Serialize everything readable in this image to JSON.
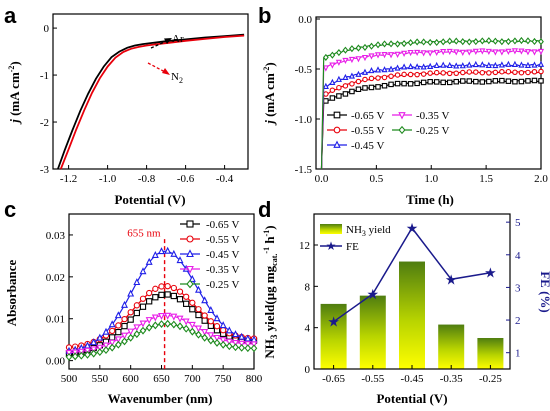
{
  "panels": [
    {
      "id": "a",
      "label": "a",
      "chart_data": {
        "type": "line",
        "xlabel": "Potential (V)",
        "ylabel": "j (mA cm-2)",
        "xlim": [
          -1.28,
          -0.28
        ],
        "ylim": [
          -3,
          0.3
        ],
        "xticks": [
          "-1.2",
          "-1.0",
          "-0.8",
          "-0.6",
          "-0.4"
        ],
        "yticks": [
          "0",
          "-1",
          "-2",
          "-3"
        ],
        "series": [
          {
            "name": "Ar",
            "color": "#000000",
            "x": [
              -1.255,
              -1.22,
              -1.18,
              -1.14,
              -1.1,
              -1.06,
              -1.02,
              -0.98,
              -0.94,
              -0.9,
              -0.86,
              -0.82,
              -0.78,
              -0.74,
              -0.7,
              -0.6,
              -0.5,
              -0.4,
              -0.3
            ],
            "y": [
              -3.0,
              -2.6,
              -2.17,
              -1.76,
              -1.4,
              -1.08,
              -0.82,
              -0.62,
              -0.5,
              -0.42,
              -0.37,
              -0.34,
              -0.32,
              -0.3,
              -0.28,
              -0.24,
              -0.2,
              -0.17,
              -0.14
            ]
          },
          {
            "name": "N2",
            "color": "#e8000b",
            "x": [
              -1.24,
              -1.2,
              -1.16,
              -1.12,
              -1.08,
              -1.04,
              -1.0,
              -0.96,
              -0.92,
              -0.88,
              -0.84,
              -0.8,
              -0.76,
              -0.72,
              -0.68,
              -0.6,
              -0.5,
              -0.4,
              -0.3
            ],
            "y": [
              -3.0,
              -2.58,
              -2.15,
              -1.75,
              -1.38,
              -1.07,
              -0.82,
              -0.63,
              -0.51,
              -0.44,
              -0.4,
              -0.37,
              -0.35,
              -0.33,
              -0.31,
              -0.27,
              -0.23,
              -0.19,
              -0.16
            ]
          }
        ],
        "annotations": [
          {
            "text": "Ar",
            "color": "#000000"
          },
          {
            "text": "N",
            "sub": "2",
            "color": "#000000"
          }
        ]
      }
    },
    {
      "id": "b",
      "label": "b",
      "chart_data": {
        "type": "line",
        "xlabel": "Time (h)",
        "ylabel": "j (mA cm-2)",
        "xlim": [
          -0.05,
          2.0
        ],
        "ylim": [
          -1.5,
          0.02
        ],
        "xticks": [
          "0.0",
          "0.5",
          "1.0",
          "1.5",
          "2.0"
        ],
        "yticks": [
          "0.0",
          "-0.5",
          "-1.0",
          "-1.5"
        ],
        "legend_position": "bottom",
        "series": [
          {
            "name": "-0.65 V",
            "color": "#000000",
            "marker": "square",
            "steady": -0.62,
            "start": -0.85
          },
          {
            "name": "-0.55 V",
            "color": "#e8000b",
            "marker": "circle",
            "steady": -0.53,
            "start": -0.78
          },
          {
            "name": "-0.45 V",
            "color": "#1f1fe8",
            "marker": "triangle-up",
            "steady": -0.46,
            "start": -0.7
          },
          {
            "name": "-0.35 V",
            "color": "#e81ee8",
            "marker": "triangle-down",
            "steady": -0.32,
            "start": -0.5
          },
          {
            "name": "-0.25 V",
            "color": "#1e8a1e",
            "marker": "diamond",
            "steady": -0.22,
            "start": -0.4
          }
        ]
      }
    },
    {
      "id": "c",
      "label": "c",
      "chart_data": {
        "type": "line",
        "xlabel": "Wavenumber (nm)",
        "ylabel": "Absorbance",
        "xlim": [
          500,
          800
        ],
        "ylim": [
          -0.002,
          0.035
        ],
        "xticks": [
          "500",
          "550",
          "600",
          "650",
          "700",
          "750",
          "800"
        ],
        "yticks": [
          "0.00",
          "0.01",
          "0.02",
          "0.03"
        ],
        "legend_position": "top-right",
        "peak_marker": {
          "x": 655,
          "label": "655 nm"
        },
        "series": [
          {
            "name": "-0.65 V",
            "color": "#000000",
            "marker": "square",
            "peak": 0.0158,
            "base": 0.0015,
            "tail": 0.0045
          },
          {
            "name": "-0.55 V",
            "color": "#e8000b",
            "marker": "circle",
            "peak": 0.0178,
            "base": 0.003,
            "tail": 0.005
          },
          {
            "name": "-0.45 V",
            "color": "#1f1fe8",
            "marker": "triangle-up",
            "peak": 0.0262,
            "base": 0.002,
            "tail": 0.0045
          },
          {
            "name": "-0.35 V",
            "color": "#e81ee8",
            "marker": "triangle-down",
            "peak": 0.0108,
            "base": 0.0018,
            "tail": 0.0038
          },
          {
            "name": "-0.25 V",
            "color": "#1e8a1e",
            "marker": "diamond",
            "peak": 0.0088,
            "base": 0.0008,
            "tail": 0.0028
          }
        ]
      }
    },
    {
      "id": "d",
      "label": "d",
      "chart_data": {
        "type": "bar",
        "xlabel": "Potential (V)",
        "ylabel": "NH3 yield(μg mgcat.-1 h-1)",
        "y2label": "FE (%)",
        "categories": [
          "-0.65",
          "-0.55",
          "-0.45",
          "-0.35",
          "-0.25"
        ],
        "ylim": [
          0,
          15
        ],
        "y2lim": [
          0.5,
          5.25
        ],
        "yticks": [
          "0",
          "4",
          "8",
          "12"
        ],
        "y2ticks": [
          "1",
          "2",
          "3",
          "4",
          "5"
        ],
        "series": [
          {
            "name": "NH3 yield",
            "type": "bar",
            "values": [
              6.3,
              7.1,
              10.4,
              4.3,
              3.0
            ]
          },
          {
            "name": "FE",
            "type": "line",
            "axis": "right",
            "color": "#1a1a8c",
            "values": [
              1.95,
              2.8,
              4.82,
              3.25,
              3.45
            ]
          }
        ]
      }
    }
  ]
}
